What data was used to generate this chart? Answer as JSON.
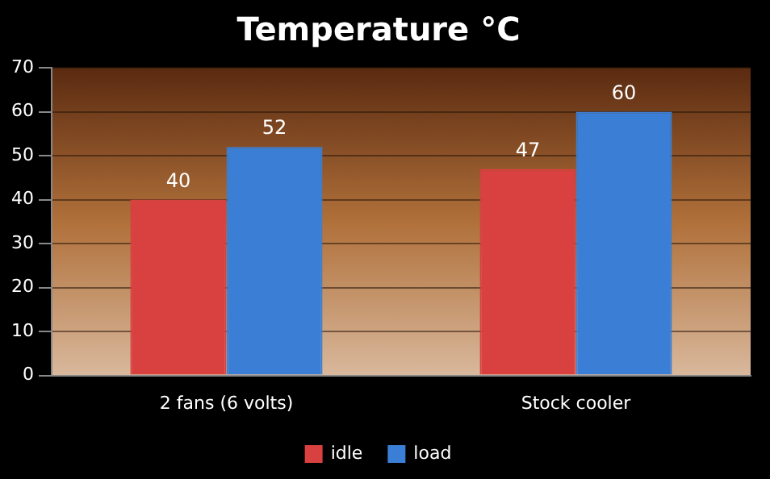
{
  "chart_data": {
    "type": "bar",
    "title": "Temperature °C",
    "categories": [
      "2 fans (6 volts)",
      "Stock cooler"
    ],
    "series": [
      {
        "name": "idle",
        "color": "#d94040",
        "values": [
          40,
          47
        ]
      },
      {
        "name": "load",
        "color": "#3a7fd5",
        "values": [
          52,
          60
        ]
      }
    ],
    "ylim": [
      0,
      70
    ],
    "yticks": [
      0,
      10,
      20,
      30,
      40,
      50,
      60,
      70
    ],
    "grid": "y",
    "legend": "bottom",
    "data_labels": true
  }
}
